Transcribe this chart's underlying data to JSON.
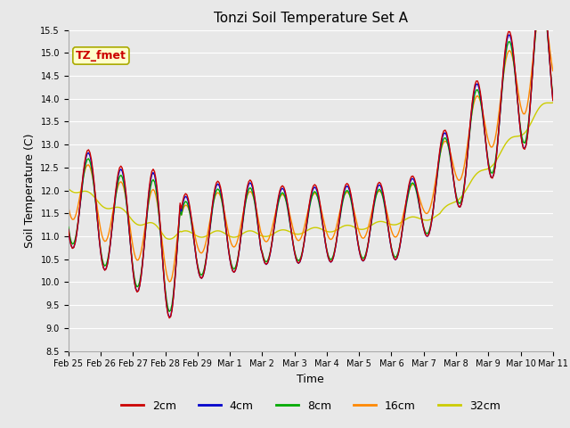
{
  "title": "Tonzi Soil Temperature Set A",
  "xlabel": "Time",
  "ylabel": "Soil Temperature (C)",
  "ylim": [
    8.5,
    15.5
  ],
  "yticks": [
    8.5,
    9.0,
    9.5,
    10.0,
    10.5,
    11.0,
    11.5,
    12.0,
    12.5,
    13.0,
    13.5,
    14.0,
    14.5,
    15.0,
    15.5
  ],
  "legend_labels": [
    "2cm",
    "4cm",
    "8cm",
    "16cm",
    "32cm"
  ],
  "line_colors": [
    "#cc0000",
    "#0000cc",
    "#00aa00",
    "#ff8800",
    "#cccc00"
  ],
  "annotation_text": "TZ_fmet",
  "annotation_color": "#cc0000",
  "annotation_bg": "#ffffcc",
  "annotation_edge": "#aaaa00",
  "plot_bg": "#e8e8e8",
  "fig_bg": "#e8e8e8",
  "title_fontsize": 11,
  "axis_fontsize": 9,
  "tick_fontsize": 7,
  "legend_fontsize": 9,
  "tick_dates": [
    "Feb 25",
    "Feb 26",
    "Feb 27",
    "Feb 28",
    "Feb 29",
    "Mar 1",
    "Mar 2",
    "Mar 3",
    "Mar 4",
    "Mar 5",
    "Mar 6",
    "Mar 7",
    "Mar 8",
    "Mar 9",
    "Mar 10",
    "Mar 11"
  ]
}
